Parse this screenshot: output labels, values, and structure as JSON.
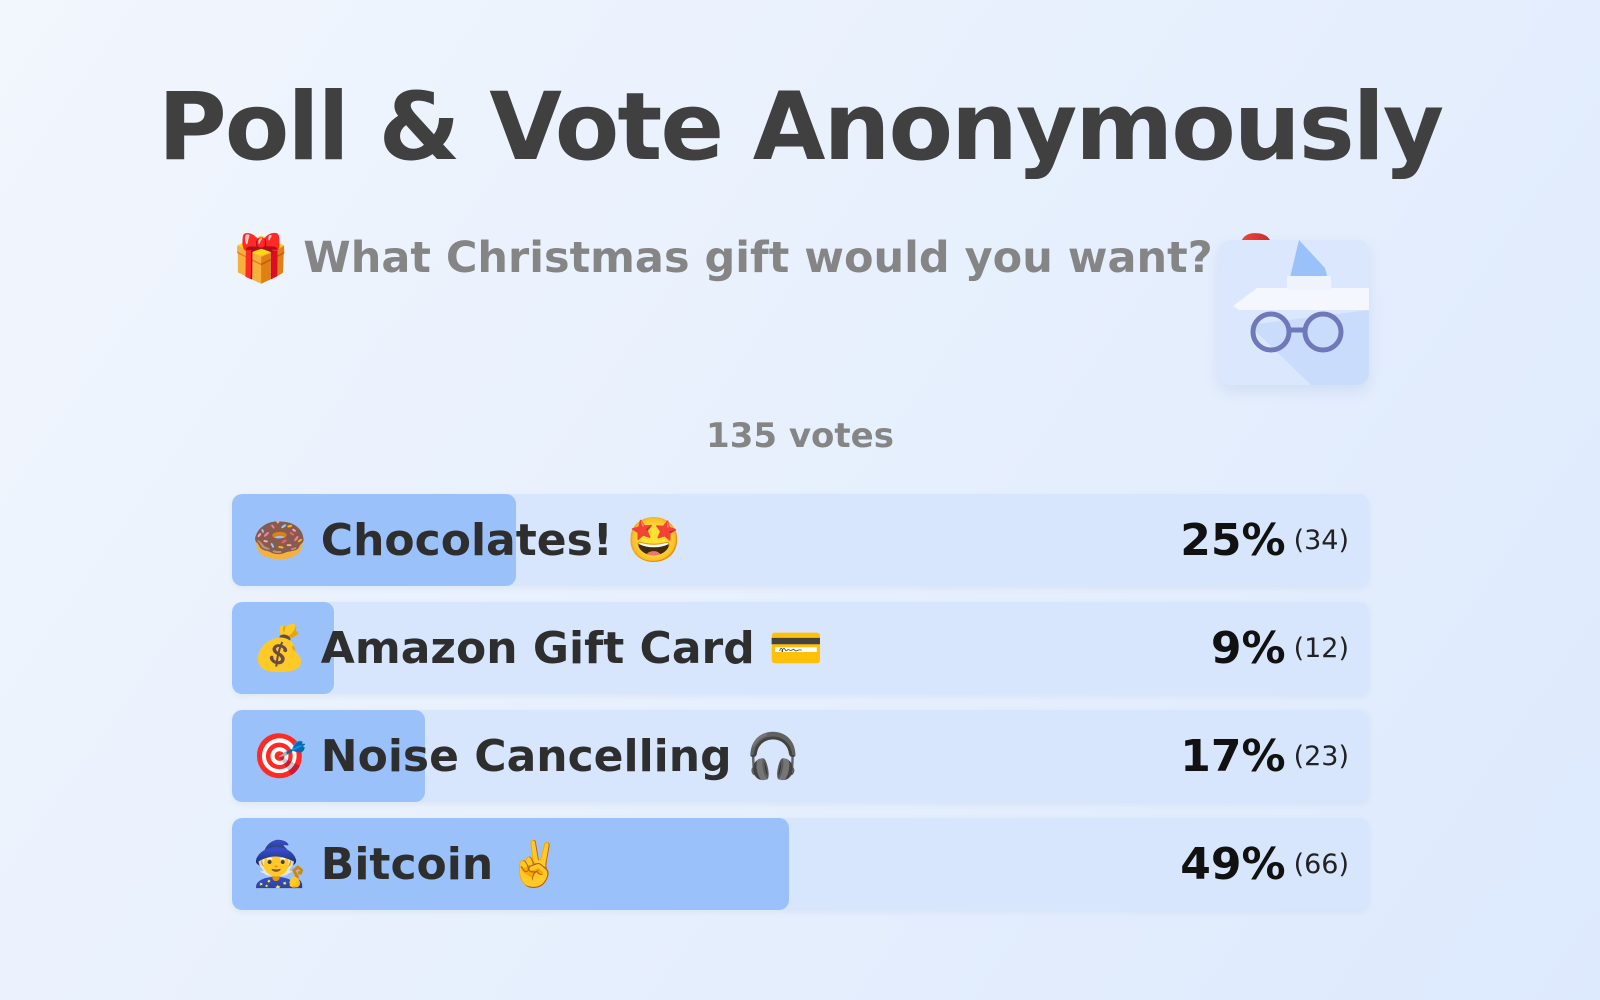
{
  "title": "Poll & Vote Anonymously",
  "question": {
    "emoji_left": "🎁",
    "text": "What Christmas gift would you want?",
    "emoji_right": "🎅"
  },
  "votes_label": "135 votes",
  "options": [
    {
      "emoji_left": "🍩",
      "text": "Chocolates!",
      "emoji_right": "🤩",
      "percent": "25%",
      "count": "(34)",
      "fill_fraction": 0.25
    },
    {
      "emoji_left": "💰",
      "text": "Amazon Gift Card",
      "emoji_right": "💳",
      "percent": "9%",
      "count": "(12)",
      "fill_fraction": 0.09
    },
    {
      "emoji_left": "🎯",
      "text": "Noise Cancelling",
      "emoji_right": "🎧",
      "percent": "17%",
      "count": "(23)",
      "fill_fraction": 0.17
    },
    {
      "emoji_left": "🧙",
      "text": "Bitcoin",
      "emoji_right": "✌️",
      "percent": "49%",
      "count": "(66)",
      "fill_fraction": 0.49
    }
  ],
  "icons": {
    "incognito": "incognito-icon"
  },
  "colors": {
    "bar_track": "#d7e6fd",
    "bar_fill": "#9bc1fb",
    "title": "#404040",
    "subtle_text": "#858585"
  }
}
